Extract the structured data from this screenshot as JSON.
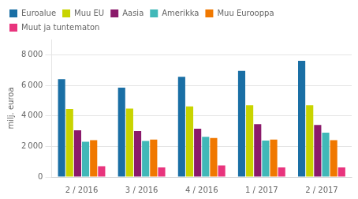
{
  "chart_data": {
    "type": "bar",
    "categories": [
      "2 / 2016",
      "3 / 2016",
      "4 / 2016",
      "1 / 2017",
      "2 / 2017"
    ],
    "series": [
      {
        "name": "Euroalue",
        "color": "#1a6fa5",
        "values": [
          6400,
          5850,
          6550,
          6950,
          7600
        ]
      },
      {
        "name": "Muu EU",
        "color": "#c8d400",
        "values": [
          4450,
          4480,
          4620,
          4700,
          4700
        ]
      },
      {
        "name": "Aasia",
        "color": "#8b1a6b",
        "values": [
          3050,
          3000,
          3150,
          3450,
          3400
        ]
      },
      {
        "name": "Amerikka",
        "color": "#41b8b8",
        "values": [
          2300,
          2350,
          2620,
          2380,
          2900
        ]
      },
      {
        "name": "Muu Eurooppa",
        "color": "#f07800",
        "values": [
          2400,
          2450,
          2550,
          2450,
          2400
        ]
      },
      {
        "name": "Muut ja tuntematon",
        "color": "#e8347d",
        "values": [
          700,
          620,
          750,
          620,
          620
        ]
      }
    ],
    "ylabel": "milj. euroa",
    "ylim": [
      0,
      9000
    ],
    "yticks": [
      0,
      {
        "value": 2000,
        "label": "2 000"
      },
      {
        "value": 4000,
        "label": "4 000"
      },
      {
        "value": 6000,
        "label": "6 000"
      },
      {
        "value": 8000,
        "label": "8 000"
      }
    ],
    "grid": true,
    "legend": "top"
  }
}
